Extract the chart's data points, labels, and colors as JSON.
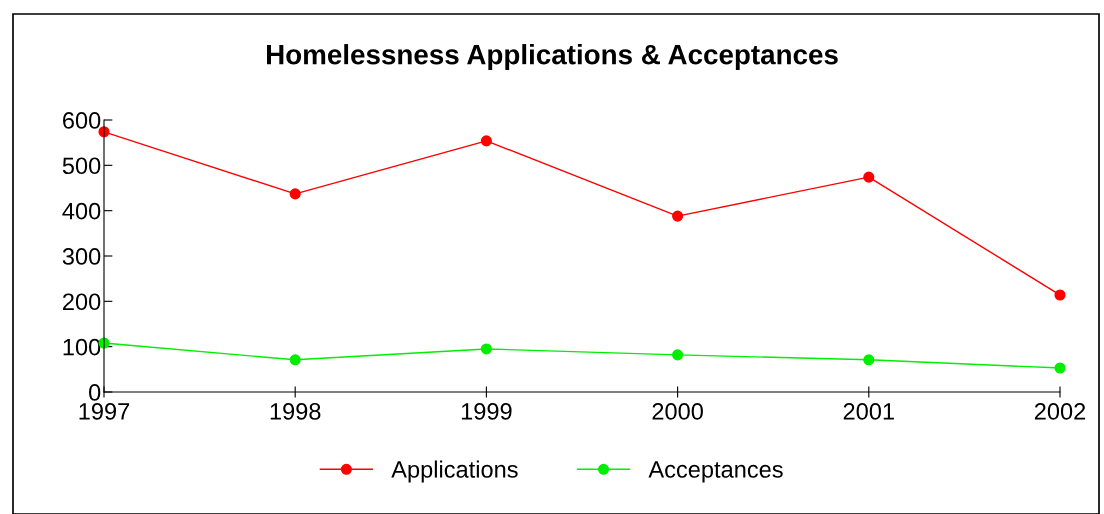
{
  "chart_data": {
    "type": "line",
    "title": "Homelessness Applications & Acceptances",
    "x": [
      1997,
      1998,
      1999,
      2000,
      2001,
      2002
    ],
    "xlim": [
      1997,
      2002
    ],
    "xticks": [
      1997,
      1998,
      1999,
      2000,
      2001,
      2002
    ],
    "ylim": [
      0,
      600
    ],
    "yticks": [
      0,
      100,
      200,
      300,
      400,
      500,
      600
    ],
    "series": [
      {
        "name": "Applications",
        "color": "#ff0000",
        "values": [
          574,
          437,
          554,
          388,
          474,
          214
        ]
      },
      {
        "name": "Acceptances",
        "color": "#00ee00",
        "values": [
          108,
          71,
          95,
          82,
          71,
          53
        ]
      }
    ],
    "marker": "circle",
    "line_style": "solid",
    "grid": false,
    "legend": "bottom"
  }
}
